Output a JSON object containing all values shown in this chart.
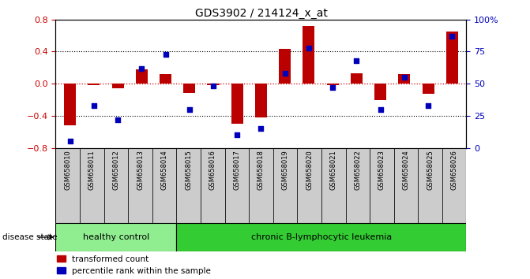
{
  "title": "GDS3902 / 214124_x_at",
  "samples": [
    "GSM658010",
    "GSM658011",
    "GSM658012",
    "GSM658013",
    "GSM658014",
    "GSM658015",
    "GSM658016",
    "GSM658017",
    "GSM658018",
    "GSM658019",
    "GSM658020",
    "GSM658021",
    "GSM658022",
    "GSM658023",
    "GSM658024",
    "GSM658025",
    "GSM658026"
  ],
  "red_values": [
    -0.52,
    -0.02,
    -0.06,
    0.18,
    0.12,
    -0.12,
    -0.02,
    -0.5,
    -0.42,
    0.43,
    0.72,
    -0.02,
    0.13,
    -0.2,
    0.12,
    -0.13,
    0.65
  ],
  "blue_values": [
    5,
    33,
    22,
    62,
    73,
    30,
    48,
    10,
    15,
    58,
    78,
    47,
    68,
    30,
    55,
    33,
    87
  ],
  "healthy_count": 5,
  "healthy_label": "healthy control",
  "disease_label": "chronic B-lymphocytic leukemia",
  "disease_state_label": "disease state",
  "legend_red": "transformed count",
  "legend_blue": "percentile rank within the sample",
  "ylim_left": [
    -0.8,
    0.8
  ],
  "ylim_right": [
    0,
    100
  ],
  "yticks_left": [
    -0.8,
    -0.4,
    0.0,
    0.4,
    0.8
  ],
  "yticks_right": [
    0,
    25,
    50,
    75,
    100
  ],
  "ytick_labels_right": [
    "0",
    "25",
    "50",
    "75",
    "100%"
  ],
  "bar_color": "#BB0000",
  "dot_color": "#0000BB",
  "healthy_bg": "#90EE90",
  "disease_bg": "#33CC33",
  "tick_label_bg": "#CCCCCC",
  "hline_color": "#CC0000"
}
